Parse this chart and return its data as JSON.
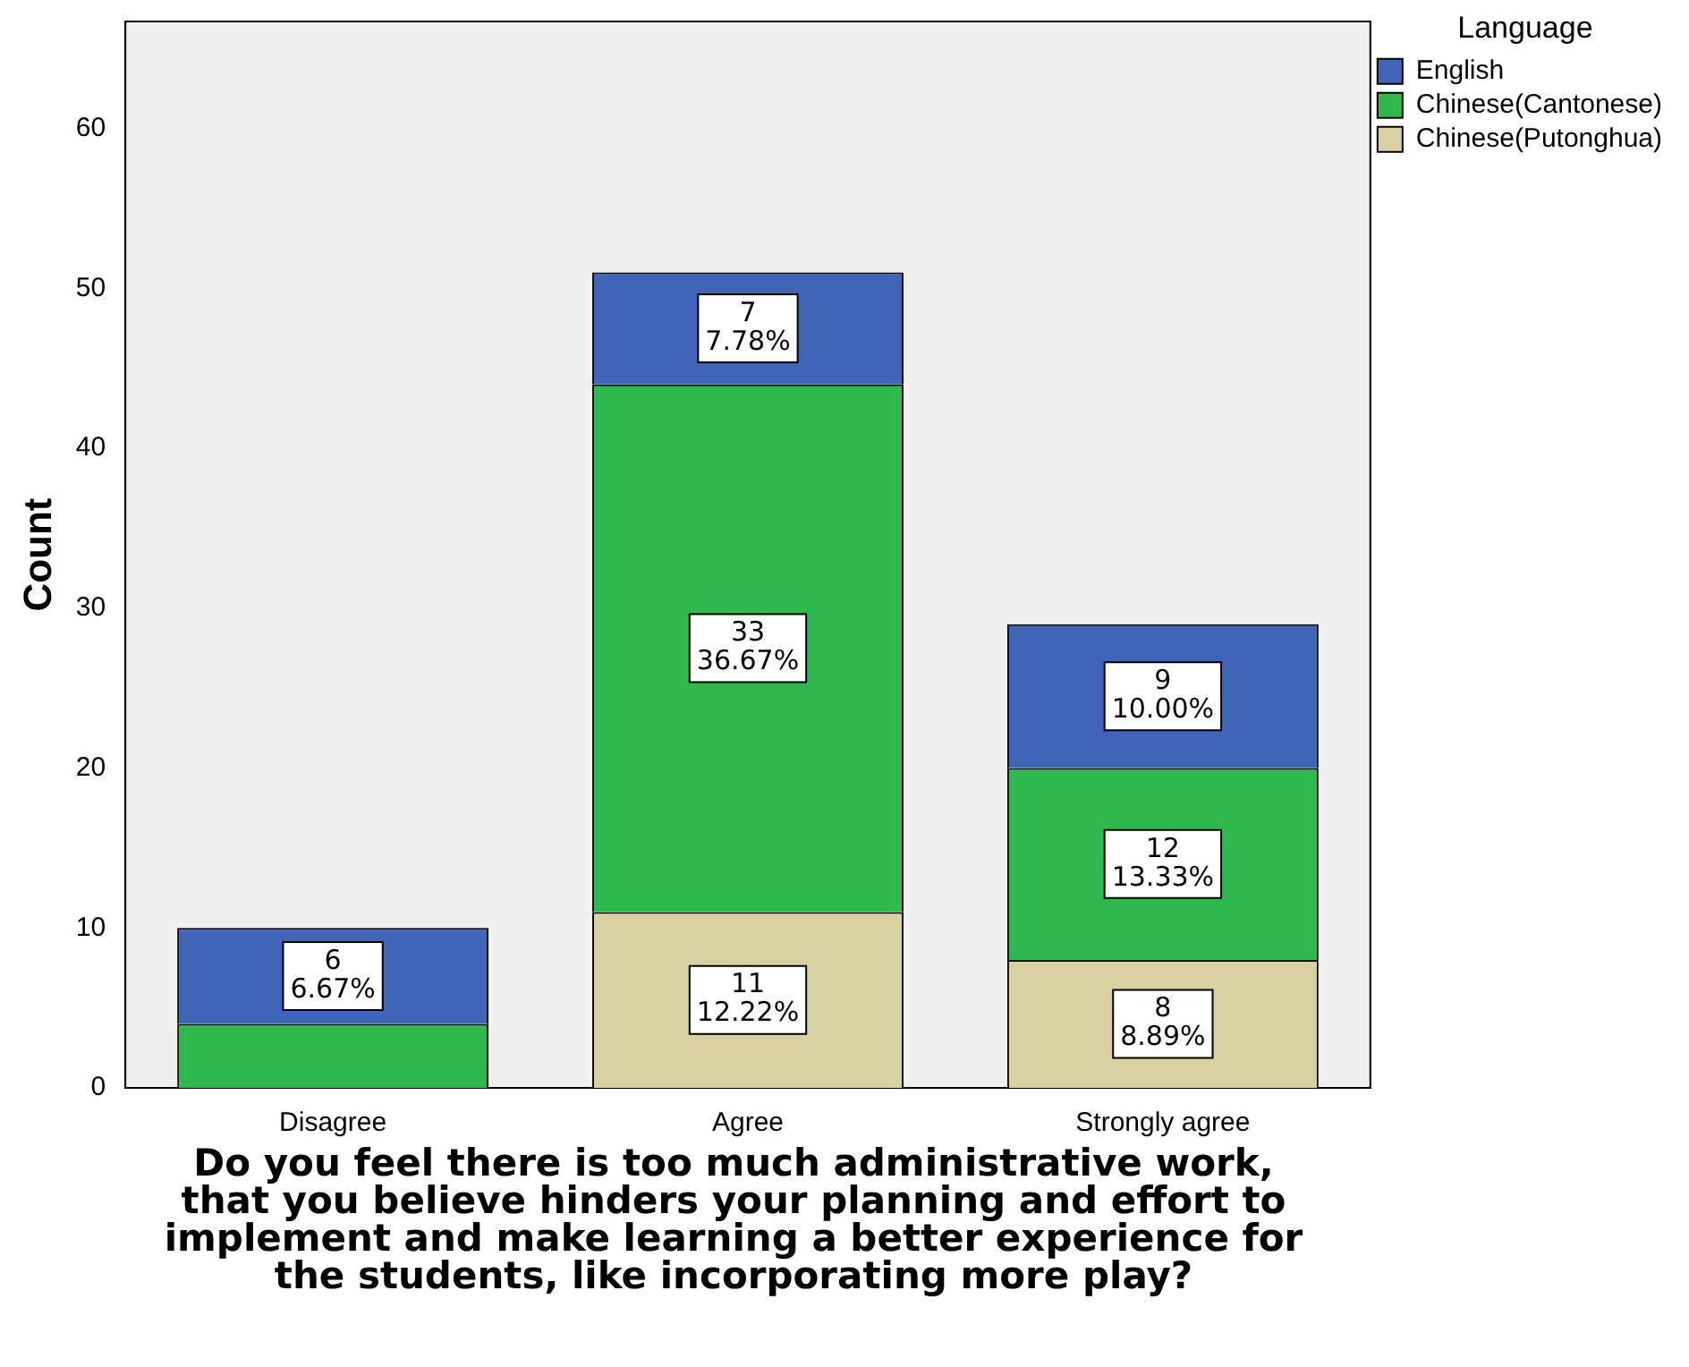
{
  "chart_data": {
    "type": "bar",
    "stacked": true,
    "ylabel": "Count",
    "xlabel": "Do you feel there is too much administrative work, that you believe hinders your planning and effort to implement and make learning a better experience for the students, like incorporating more play?",
    "legend_title": "Language",
    "legend": "top right",
    "grid": false,
    "categories": [
      "Disagree",
      "Agree",
      "Strongly agree"
    ],
    "ylim": [
      0,
      66.7
    ],
    "yticks": [
      0,
      10,
      20,
      30,
      40,
      50,
      60
    ],
    "series": [
      {
        "name": "Chinese(Putonghua)",
        "color": "#d9d1a1",
        "values": [
          0,
          11,
          8
        ],
        "value_labels": [
          null,
          "11\n12.22%",
          "8\n8.89%"
        ]
      },
      {
        "name": "Chinese(Cantonese)",
        "color": "#2fb84e",
        "values": [
          4,
          33,
          12
        ],
        "value_labels": [
          null,
          "33\n36.67%",
          "12\n13.33%"
        ]
      },
      {
        "name": "English",
        "color": "#4064b8",
        "values": [
          6,
          7,
          9
        ],
        "value_labels": [
          "6\n6.67%",
          "7\n7.78%",
          "9\n10.00%"
        ]
      }
    ]
  }
}
